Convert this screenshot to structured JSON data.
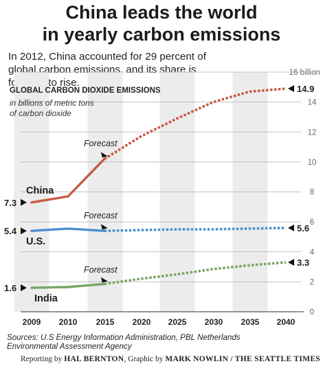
{
  "headline": {
    "line1": "China leads the world",
    "line2": "in yearly carbon emissions"
  },
  "dek": "In 2012, China accounted for 29 percent of global carbon emissions, and its share is forecast to rise.",
  "sources": {
    "line1": "Sources: U.S Energy Information Administration, PBL Netherlands",
    "line2": "Environmental Assessment Agency"
  },
  "credit": {
    "reporting_prefix": "Reporting by ",
    "reporter": "HAL BERNTON",
    "graphic_prefix": ",  Graphic by ",
    "artist": "MARK NOWLIN / THE SEATTLE TIMES"
  },
  "chart_data": {
    "type": "line",
    "title": "GLOBAL CARBON DIOXIDE EMISSIONS",
    "subtitle_line1": "in billions of metric tons",
    "subtitle_line2": "of carbon dioxide",
    "x_ticks": [
      "2009",
      "2010",
      "2015",
      "2020",
      "2025",
      "2030",
      "2035",
      "2040"
    ],
    "y_ticks": [
      {
        "value": 0,
        "label": "0"
      },
      {
        "value": 2,
        "label": "2"
      },
      {
        "value": 4,
        "label": "4"
      },
      {
        "value": 6,
        "label": "6"
      },
      {
        "value": 8,
        "label": "8"
      },
      {
        "value": 10,
        "label": "10"
      },
      {
        "value": 12,
        "label": "12"
      },
      {
        "value": 14,
        "label": "14"
      },
      {
        "value": 16,
        "label": "16 billion"
      }
    ],
    "ylim": [
      0,
      16
    ],
    "forecast_label": "Forecast",
    "series": [
      {
        "name": "China",
        "color": "#c75a3f",
        "start_label": "7.3",
        "end_label": "14.9",
        "actual": [
          [
            2009,
            7.3
          ],
          [
            2010,
            7.7
          ],
          [
            2015,
            10.2
          ]
        ],
        "forecast": [
          [
            2015,
            10.2
          ],
          [
            2020,
            11.7
          ],
          [
            2025,
            12.9
          ],
          [
            2030,
            14.0
          ],
          [
            2035,
            14.7
          ],
          [
            2040,
            14.9
          ]
        ]
      },
      {
        "name": "U.S.",
        "color": "#4a8fcf",
        "start_label": "5.4",
        "end_label": "5.6",
        "actual": [
          [
            2009,
            5.4
          ],
          [
            2010,
            5.55
          ],
          [
            2015,
            5.4
          ]
        ],
        "forecast": [
          [
            2015,
            5.4
          ],
          [
            2020,
            5.45
          ],
          [
            2025,
            5.5
          ],
          [
            2030,
            5.5
          ],
          [
            2035,
            5.55
          ],
          [
            2040,
            5.6
          ]
        ]
      },
      {
        "name": "India",
        "color": "#7aa566",
        "start_label": "1.6",
        "end_label": "3.3",
        "actual": [
          [
            2009,
            1.6
          ],
          [
            2010,
            1.65
          ],
          [
            2015,
            1.85
          ]
        ],
        "forecast": [
          [
            2015,
            1.85
          ],
          [
            2020,
            2.2
          ],
          [
            2025,
            2.5
          ],
          [
            2030,
            2.85
          ],
          [
            2035,
            3.1
          ],
          [
            2040,
            3.3
          ]
        ]
      }
    ],
    "grid": true,
    "shaded_columns": [
      "2009",
      "2015",
      "2025",
      "2035"
    ]
  }
}
